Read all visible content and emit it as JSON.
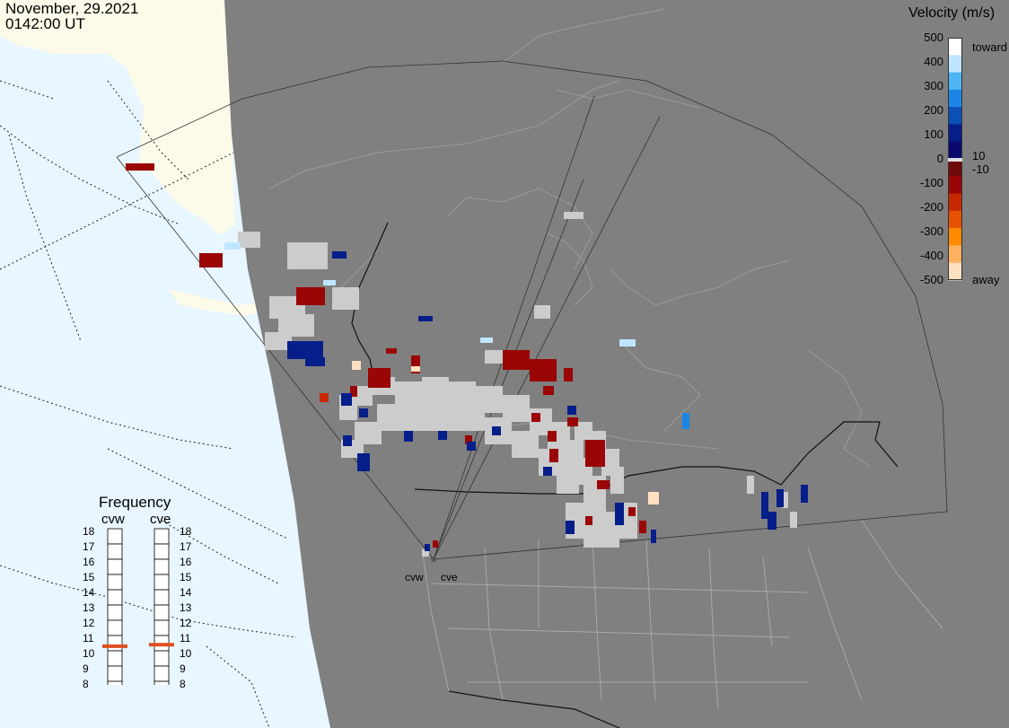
{
  "header": {
    "date": "November, 29.2021",
    "time": "0142:00 UT"
  },
  "velocity_scale": {
    "title": "Velocity (m/s)",
    "ticks": [
      "500",
      "400",
      "300",
      "200",
      "100",
      "0",
      "-100",
      "-200",
      "-300",
      "-400",
      "-500"
    ],
    "near_zero_pos": "10",
    "near_zero_neg": "-10",
    "toward_label": "toward",
    "away_label": "away",
    "colors": [
      "#ffffff",
      "#bfe6ff",
      "#4fb5f5",
      "#1c86e6",
      "#0b50b4",
      "#061e8a",
      "#0a0a6e",
      "#6e0a0a",
      "#9a0505",
      "#c82800",
      "#e65300",
      "#ff8a00",
      "#ffb060",
      "#ffe0c0"
    ]
  },
  "frequency_panel": {
    "title": "Frequency",
    "radars": [
      "cvw",
      "cve"
    ],
    "levels": [
      "18",
      "17",
      "16",
      "15",
      "14",
      "13",
      "12",
      "11",
      "10",
      "9",
      "8"
    ],
    "cvw_marker_level": 10.8,
    "cve_marker_level": 10.9,
    "marker_color": "#e05020"
  },
  "radar_sites": {
    "cvw_label": "cvw",
    "cve_label": "cve"
  },
  "map": {
    "ocean_color": "#e8f6ff",
    "land_color": "#fcfbe9",
    "night_color": "#808080",
    "ground_scatter_color": "#cccccc"
  }
}
